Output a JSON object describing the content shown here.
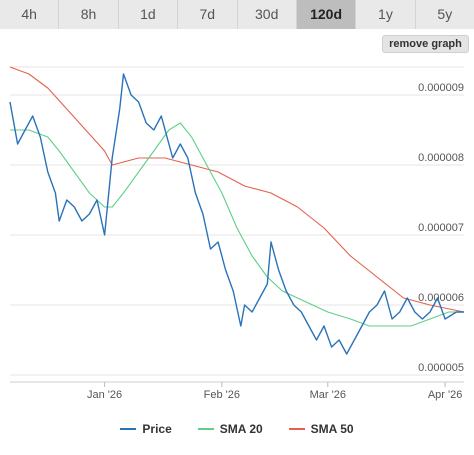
{
  "tabs": [
    {
      "label": "4h",
      "active": false
    },
    {
      "label": "8h",
      "active": false
    },
    {
      "label": "1d",
      "active": false
    },
    {
      "label": "7d",
      "active": false
    },
    {
      "label": "30d",
      "active": false
    },
    {
      "label": "120d",
      "active": true
    },
    {
      "label": "1y",
      "active": false
    },
    {
      "label": "5y",
      "active": false
    }
  ],
  "remove_graph_label": "remove graph",
  "colors": {
    "price": "#2a73b8",
    "sma20": "#5fcf87",
    "sma50": "#e5604f",
    "grid": "#e6e6e6",
    "axis_text": "#555555"
  },
  "chart_data": {
    "type": "line",
    "title": "",
    "xlabel": "",
    "ylabel": "",
    "ylim": [
      4.9e-06,
      9.5e-06
    ],
    "xlim": [
      "2025-12-07",
      "2026-04-06"
    ],
    "y_ticks": [
      {
        "value": 9e-06,
        "label": "0.000009"
      },
      {
        "value": 8e-06,
        "label": "0.000008"
      },
      {
        "value": 7e-06,
        "label": "0.000007"
      },
      {
        "value": 6e-06,
        "label": "0.000006"
      },
      {
        "value": 5e-06,
        "label": "0.000005"
      }
    ],
    "x_ticks": [
      {
        "value": "2026-01-01",
        "label": "Jan '26"
      },
      {
        "value": "2026-02-01",
        "label": "Feb '26"
      },
      {
        "value": "2026-03-01",
        "label": "Mar '26"
      },
      {
        "value": "2026-04-01",
        "label": "Apr '26"
      }
    ],
    "grid": true,
    "legend_position": "bottom",
    "series": [
      {
        "name": "Price",
        "color": "#2a73b8",
        "points": [
          [
            "2025-12-07",
            8.9e-06
          ],
          [
            "2025-12-09",
            8.3e-06
          ],
          [
            "2025-12-11",
            8.5e-06
          ],
          [
            "2025-12-13",
            8.7e-06
          ],
          [
            "2025-12-15",
            8.4e-06
          ],
          [
            "2025-12-17",
            7.9e-06
          ],
          [
            "2025-12-19",
            7.6e-06
          ],
          [
            "2025-12-20",
            7.2e-06
          ],
          [
            "2025-12-22",
            7.5e-06
          ],
          [
            "2025-12-24",
            7.4e-06
          ],
          [
            "2025-12-26",
            7.2e-06
          ],
          [
            "2025-12-28",
            7.3e-06
          ],
          [
            "2025-12-30",
            7.5e-06
          ],
          [
            "2026-01-01",
            7e-06
          ],
          [
            "2026-01-03",
            8.1e-06
          ],
          [
            "2026-01-05",
            8.8e-06
          ],
          [
            "2026-01-06",
            9.3e-06
          ],
          [
            "2026-01-08",
            9e-06
          ],
          [
            "2026-01-10",
            8.9e-06
          ],
          [
            "2026-01-12",
            8.6e-06
          ],
          [
            "2026-01-14",
            8.5e-06
          ],
          [
            "2026-01-16",
            8.7e-06
          ],
          [
            "2026-01-17",
            8.5e-06
          ],
          [
            "2026-01-19",
            8.1e-06
          ],
          [
            "2026-01-21",
            8.3e-06
          ],
          [
            "2026-01-23",
            8.1e-06
          ],
          [
            "2026-01-25",
            7.6e-06
          ],
          [
            "2026-01-27",
            7.3e-06
          ],
          [
            "2026-01-29",
            6.8e-06
          ],
          [
            "2026-01-31",
            6.9e-06
          ],
          [
            "2026-02-02",
            6.5e-06
          ],
          [
            "2026-02-04",
            6.2e-06
          ],
          [
            "2026-02-06",
            5.7e-06
          ],
          [
            "2026-02-07",
            6e-06
          ],
          [
            "2026-02-09",
            5.9e-06
          ],
          [
            "2026-02-11",
            6.1e-06
          ],
          [
            "2026-02-13",
            6.3e-06
          ],
          [
            "2026-02-14",
            6.9e-06
          ],
          [
            "2026-02-16",
            6.5e-06
          ],
          [
            "2026-02-18",
            6.2e-06
          ],
          [
            "2026-02-20",
            6e-06
          ],
          [
            "2026-02-22",
            5.9e-06
          ],
          [
            "2026-02-24",
            5.7e-06
          ],
          [
            "2026-02-26",
            5.5e-06
          ],
          [
            "2026-02-28",
            5.7e-06
          ],
          [
            "2026-03-02",
            5.4e-06
          ],
          [
            "2026-03-04",
            5.5e-06
          ],
          [
            "2026-03-06",
            5.3e-06
          ],
          [
            "2026-03-08",
            5.5e-06
          ],
          [
            "2026-03-10",
            5.7e-06
          ],
          [
            "2026-03-12",
            5.9e-06
          ],
          [
            "2026-03-14",
            6e-06
          ],
          [
            "2026-03-16",
            6.2e-06
          ],
          [
            "2026-03-18",
            5.8e-06
          ],
          [
            "2026-03-20",
            5.9e-06
          ],
          [
            "2026-03-22",
            6.1e-06
          ],
          [
            "2026-03-24",
            5.9e-06
          ],
          [
            "2026-03-26",
            5.8e-06
          ],
          [
            "2026-03-28",
            5.9e-06
          ],
          [
            "2026-03-30",
            6.1e-06
          ],
          [
            "2026-04-01",
            5.8e-06
          ],
          [
            "2026-04-04",
            5.9e-06
          ],
          [
            "2026-04-06",
            5.9e-06
          ]
        ]
      },
      {
        "name": "SMA 20",
        "color": "#5fcf87",
        "points": [
          [
            "2025-12-07",
            8.5e-06
          ],
          [
            "2025-12-12",
            8.5e-06
          ],
          [
            "2025-12-17",
            8.4e-06
          ],
          [
            "2025-12-20",
            8.2e-06
          ],
          [
            "2025-12-24",
            7.9e-06
          ],
          [
            "2025-12-28",
            7.6e-06
          ],
          [
            "2026-01-01",
            7.4e-06
          ],
          [
            "2026-01-03",
            7.4e-06
          ],
          [
            "2026-01-06",
            7.6e-06
          ],
          [
            "2026-01-10",
            7.9e-06
          ],
          [
            "2026-01-14",
            8.2e-06
          ],
          [
            "2026-01-18",
            8.5e-06
          ],
          [
            "2026-01-21",
            8.6e-06
          ],
          [
            "2026-01-24",
            8.4e-06
          ],
          [
            "2026-01-28",
            8e-06
          ],
          [
            "2026-02-01",
            7.6e-06
          ],
          [
            "2026-02-05",
            7.1e-06
          ],
          [
            "2026-02-09",
            6.7e-06
          ],
          [
            "2026-02-13",
            6.4e-06
          ],
          [
            "2026-02-17",
            6.2e-06
          ],
          [
            "2026-02-21",
            6.1e-06
          ],
          [
            "2026-02-25",
            6e-06
          ],
          [
            "2026-03-01",
            5.9e-06
          ],
          [
            "2026-03-07",
            5.8e-06
          ],
          [
            "2026-03-12",
            5.7e-06
          ],
          [
            "2026-03-17",
            5.7e-06
          ],
          [
            "2026-03-23",
            5.7e-06
          ],
          [
            "2026-03-28",
            5.8e-06
          ],
          [
            "2026-04-02",
            5.9e-06
          ],
          [
            "2026-04-06",
            5.9e-06
          ]
        ]
      },
      {
        "name": "SMA 50",
        "color": "#e5604f",
        "points": [
          [
            "2025-12-07",
            9.4e-06
          ],
          [
            "2025-12-12",
            9.3e-06
          ],
          [
            "2025-12-17",
            9.1e-06
          ],
          [
            "2025-12-22",
            8.8e-06
          ],
          [
            "2025-12-27",
            8.5e-06
          ],
          [
            "2026-01-01",
            8.2e-06
          ],
          [
            "2026-01-03",
            8e-06
          ],
          [
            "2026-01-10",
            8.1e-06
          ],
          [
            "2026-01-17",
            8.1e-06
          ],
          [
            "2026-01-24",
            8e-06
          ],
          [
            "2026-01-31",
            7.9e-06
          ],
          [
            "2026-02-07",
            7.7e-06
          ],
          [
            "2026-02-14",
            7.6e-06
          ],
          [
            "2026-02-21",
            7.4e-06
          ],
          [
            "2026-02-28",
            7.1e-06
          ],
          [
            "2026-03-07",
            6.7e-06
          ],
          [
            "2026-03-14",
            6.4e-06
          ],
          [
            "2026-03-21",
            6.1e-06
          ],
          [
            "2026-03-28",
            6e-06
          ],
          [
            "2026-04-06",
            5.9e-06
          ]
        ]
      }
    ]
  }
}
